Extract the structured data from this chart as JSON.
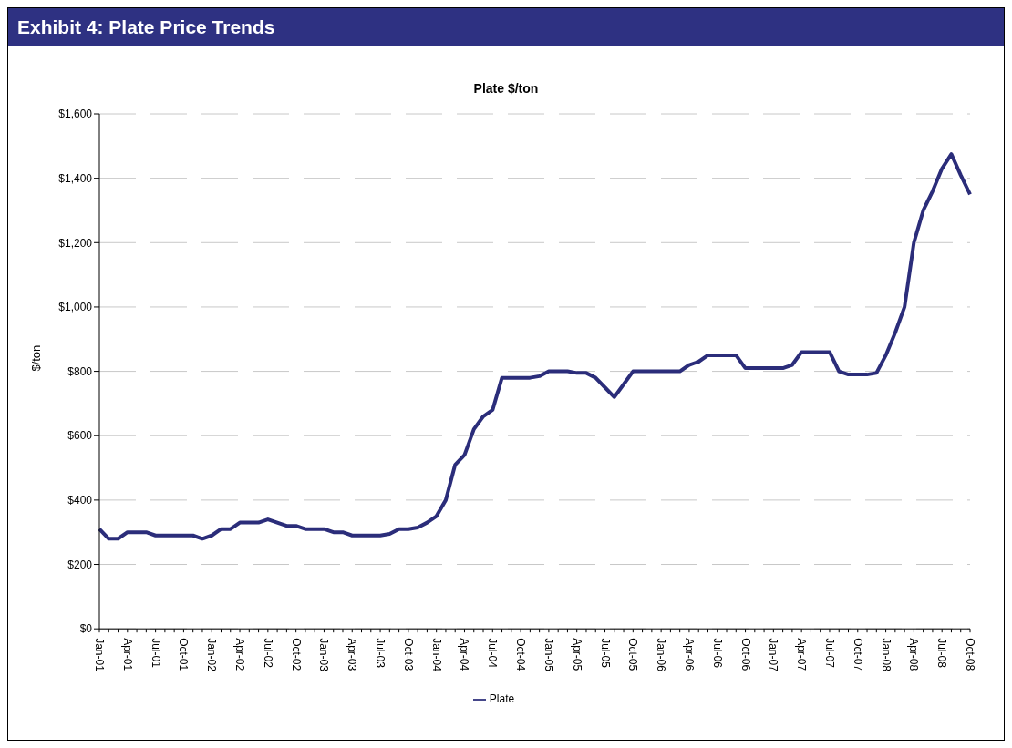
{
  "chart_data": {
    "type": "line",
    "title": "Exhibit 4: Plate Price Trends",
    "subtitle": "Plate $/ton",
    "ylabel": "$/ton",
    "categories": [
      "Jan-01",
      null,
      null,
      "Apr-01",
      null,
      null,
      "Jul-01",
      null,
      null,
      "Oct-01",
      null,
      null,
      "Jan-02",
      null,
      null,
      "Apr-02",
      null,
      null,
      "Jul-02",
      null,
      null,
      "Oct-02",
      null,
      null,
      "Jan-03",
      null,
      null,
      "Apr-03",
      null,
      null,
      "Jul-03",
      null,
      null,
      "Oct-03",
      null,
      null,
      "Jan-04",
      null,
      null,
      "Apr-04",
      null,
      null,
      "Jul-04",
      null,
      null,
      "Oct-04",
      null,
      null,
      "Jan-05",
      null,
      null,
      "Apr-05",
      null,
      null,
      "Jul-05",
      null,
      null,
      "Oct-05",
      null,
      null,
      "Jan-06",
      null,
      null,
      "Apr-06",
      null,
      null,
      "Jul-06",
      null,
      null,
      "Oct-06",
      null,
      null,
      "Jan-07",
      null,
      null,
      "Apr-07",
      null,
      null,
      "Jul-07",
      null,
      null,
      "Oct-07",
      null,
      null,
      "Jan-08",
      null,
      null,
      "Apr-08",
      null,
      null,
      "Jul-08",
      null,
      null,
      "Oct-08"
    ],
    "series": [
      {
        "name": "Plate",
        "color": "#2b2d7a",
        "values": [
          310,
          280,
          280,
          300,
          300,
          300,
          290,
          290,
          290,
          290,
          290,
          280,
          290,
          310,
          310,
          330,
          330,
          330,
          340,
          330,
          320,
          320,
          310,
          310,
          310,
          300,
          300,
          290,
          290,
          290,
          290,
          295,
          310,
          310,
          315,
          330,
          350,
          400,
          510,
          540,
          620,
          660,
          680,
          780,
          780,
          780,
          780,
          785,
          800,
          800,
          800,
          795,
          795,
          780,
          750,
          720,
          760,
          800,
          800,
          800,
          800,
          800,
          800,
          820,
          830,
          850,
          850,
          850,
          850,
          810,
          810,
          810,
          810,
          810,
          820,
          860,
          860,
          860,
          860,
          800,
          790,
          790,
          790,
          795,
          850,
          920,
          1000,
          1200,
          1300,
          1360,
          1430,
          1475,
          1410,
          1350
        ]
      }
    ],
    "ylim": [
      0,
      1600
    ],
    "yticks": [
      {
        "value": 0,
        "label": "$0"
      },
      {
        "value": 200,
        "label": "$200"
      },
      {
        "value": 400,
        "label": "$400"
      },
      {
        "value": 600,
        "label": "$600"
      },
      {
        "value": 800,
        "label": "$800"
      },
      {
        "value": 1000,
        "label": "$1,000"
      },
      {
        "value": 1200,
        "label": "$1,200"
      },
      {
        "value": 1400,
        "label": "$1,400"
      },
      {
        "value": 1600,
        "label": "$1,600"
      }
    ],
    "grid": "y",
    "legend": "bottom",
    "marker": "none",
    "line_style": "solid"
  }
}
